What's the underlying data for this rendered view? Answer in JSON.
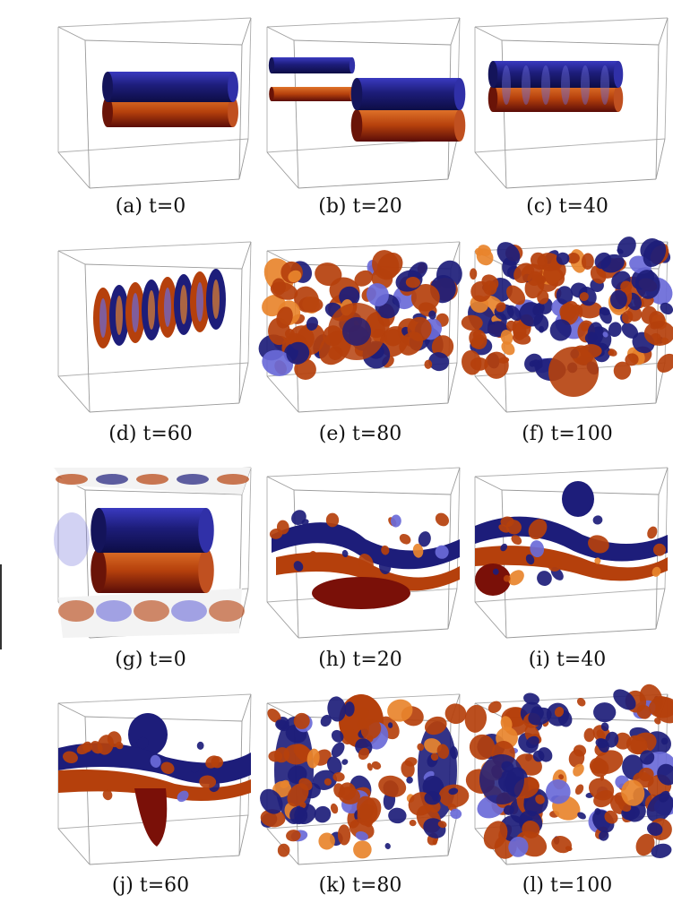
{
  "figure": {
    "panels": [
      {
        "id": "a",
        "caption": "(a) t=0",
        "scene": "tubes-initial"
      },
      {
        "id": "b",
        "caption": "(b) t=20",
        "scene": "tubes-shifted"
      },
      {
        "id": "c",
        "caption": "(c) t=40",
        "scene": "tubes-wavy"
      },
      {
        "id": "d",
        "caption": "(d) t=60",
        "scene": "tubes-rings"
      },
      {
        "id": "e",
        "caption": "(e) t=80",
        "scene": "turbulent-partial"
      },
      {
        "id": "f",
        "caption": "(f) t=100",
        "scene": "turbulent-full"
      },
      {
        "id": "g",
        "caption": "(g) t=0",
        "scene": "tubes-with-slices"
      },
      {
        "id": "h",
        "caption": "(h) t=20",
        "scene": "sheet-folded"
      },
      {
        "id": "i",
        "caption": "(i) t=40",
        "scene": "sheet-rollup"
      },
      {
        "id": "j",
        "caption": "(j) t=60",
        "scene": "sheet-lobes"
      },
      {
        "id": "k",
        "caption": "(k) t=80",
        "scene": "lobes-turbulent"
      },
      {
        "id": "l",
        "caption": "(l) t=100",
        "scene": "lobes-turbulent-full"
      }
    ],
    "colors": {
      "positive_vorticity": "#b5400c",
      "negative_vorticity": "#1d1d7a",
      "highlight_orange": "#e8842c",
      "highlight_blue": "#6a6ad8",
      "box_edge": "#9a9a9a"
    }
  }
}
